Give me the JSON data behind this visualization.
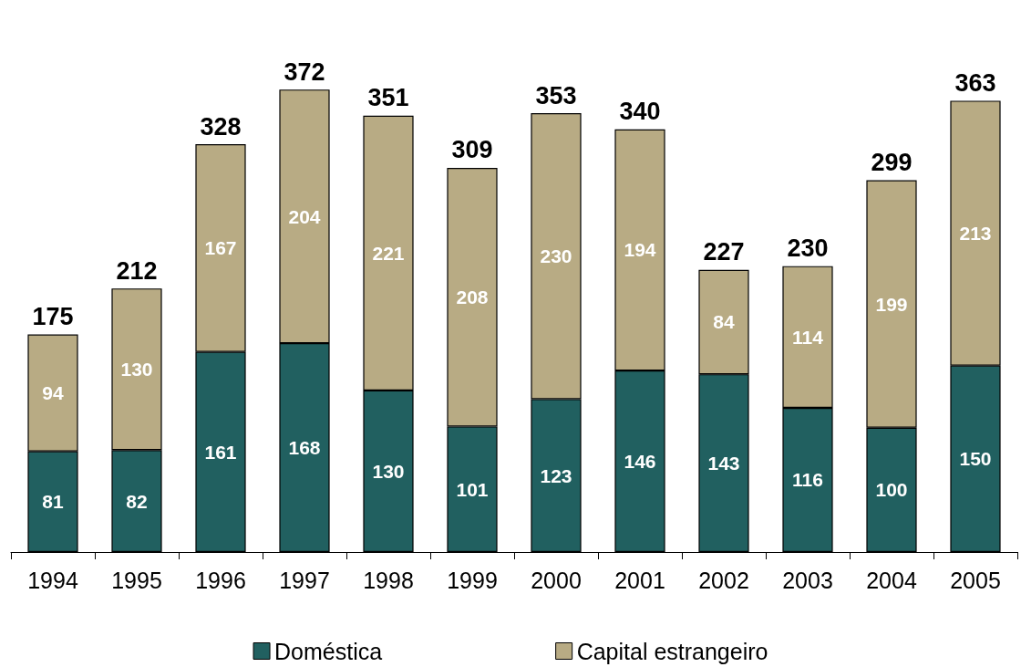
{
  "chart_data": {
    "type": "bar",
    "stacked": true,
    "categories": [
      "1994",
      "1995",
      "1996",
      "1997",
      "1998",
      "1999",
      "2000",
      "2001",
      "2002",
      "2003",
      "2004",
      "2005"
    ],
    "series": [
      {
        "name": "Doméstica",
        "color": "#216060",
        "values": [
          81,
          82,
          161,
          168,
          130,
          101,
          123,
          146,
          143,
          116,
          100,
          150
        ]
      },
      {
        "name": "Capital estrangeiro",
        "color": "#b8ab84",
        "values": [
          94,
          130,
          167,
          204,
          221,
          208,
          230,
          194,
          84,
          114,
          199,
          213
        ]
      }
    ],
    "totals": [
      "175",
      "212",
      "328",
      "372",
      "351",
      "309",
      "353",
      "340",
      "227",
      "230",
      "299",
      "363"
    ],
    "data_labels": true,
    "grid": false,
    "legend": "bottom",
    "tick_labels": "x"
  }
}
